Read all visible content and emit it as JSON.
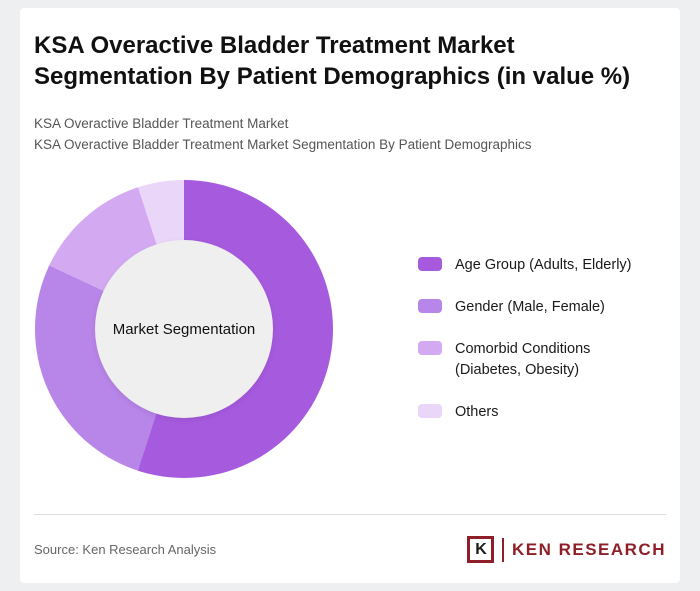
{
  "header": {
    "title": "KSA Overactive Bladder Treatment Market Segmentation By Patient Demographics (in value %)",
    "subtitle1": "KSA Overactive Bladder Treatment Market",
    "subtitle2": "KSA Overactive Bladder Treatment Market Segmentation By Patient Demographics"
  },
  "chart_data": {
    "type": "pie",
    "donut": true,
    "title": "KSA Overactive Bladder Treatment Market Segmentation By Patient Demographics (in value %)",
    "center_label": "Market Segmentation",
    "legend_position": "right",
    "values_shown": false,
    "segments": [
      {
        "label": "Age Group (Adults, Elderly)",
        "value": 55,
        "color": "#a65ade"
      },
      {
        "label": "Gender (Male, Female)",
        "value": 27,
        "color": "#b885e8"
      },
      {
        "label": "Comorbid Conditions (Diabetes, Obesity)",
        "value": 13,
        "color": "#d3a9f2"
      },
      {
        "label": "Others",
        "value": 5,
        "color": "#e9d6f9"
      }
    ]
  },
  "footer": {
    "source": "Source: Ken Research Analysis",
    "logo_letter": "K",
    "logo_text": "KEN RESEARCH",
    "logo_color": "#8e1f28"
  }
}
